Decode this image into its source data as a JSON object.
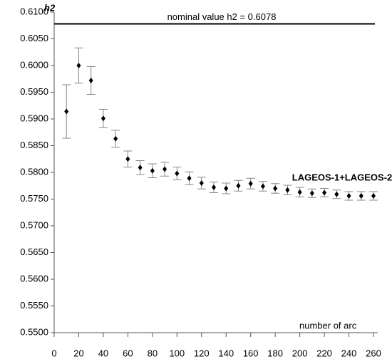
{
  "chart_data": {
    "type": "errorbar",
    "y_label": "h2",
    "x_label": "number of arc",
    "reference_line": {
      "value": 0.6078,
      "label": "nominal value h2 = 0.6078"
    },
    "x": [
      10,
      20,
      30,
      40,
      50,
      60,
      70,
      80,
      90,
      100,
      110,
      120,
      130,
      140,
      150,
      160,
      170,
      180,
      190,
      200,
      210,
      220,
      230,
      240,
      250,
      260
    ],
    "series": [
      {
        "name": "LAGEOS-1+LAGEOS-2",
        "color": "#000000",
        "error_color": "#888888",
        "values": [
          0.5914,
          0.6,
          0.5972,
          0.5901,
          0.5863,
          0.5825,
          0.5809,
          0.5803,
          0.5806,
          0.5798,
          0.5789,
          0.578,
          0.5772,
          0.577,
          0.5775,
          0.5779,
          0.5774,
          0.577,
          0.5767,
          0.5763,
          0.5761,
          0.5762,
          0.5759,
          0.5756,
          0.5756,
          0.5756
        ],
        "errors": [
          0.005,
          0.0033,
          0.0026,
          0.0017,
          0.0016,
          0.0015,
          0.0013,
          0.0013,
          0.0013,
          0.0012,
          0.0012,
          0.0011,
          0.001,
          0.001,
          0.001,
          0.001,
          0.0009,
          0.0009,
          0.0009,
          0.0009,
          0.0008,
          0.0008,
          0.0008,
          0.0008,
          0.0008,
          0.0008
        ]
      }
    ],
    "xlim": [
      0,
      260
    ],
    "xticks": [
      0,
      20,
      40,
      60,
      80,
      100,
      120,
      140,
      160,
      180,
      200,
      220,
      240,
      260
    ],
    "ylim": [
      0.55,
      0.61
    ],
    "yticks": [
      {
        "value": 0.55,
        "label": "0.5500"
      },
      {
        "value": 0.555,
        "label": "0.5550"
      },
      {
        "value": 0.56,
        "label": "0.5600"
      },
      {
        "value": 0.565,
        "label": "0.5650"
      },
      {
        "value": 0.57,
        "label": "0.5700"
      },
      {
        "value": 0.575,
        "label": "0.5750"
      },
      {
        "value": 0.58,
        "label": "0.5800"
      },
      {
        "value": 0.585,
        "label": "0.5850"
      },
      {
        "value": 0.59,
        "label": "0.5900"
      },
      {
        "value": 0.595,
        "label": "0.5950"
      },
      {
        "value": 0.6,
        "label": "0.6000"
      },
      {
        "value": 0.605,
        "label": "0.6050"
      },
      {
        "value": 0.61,
        "label": "0.6100"
      }
    ],
    "grid": false
  }
}
